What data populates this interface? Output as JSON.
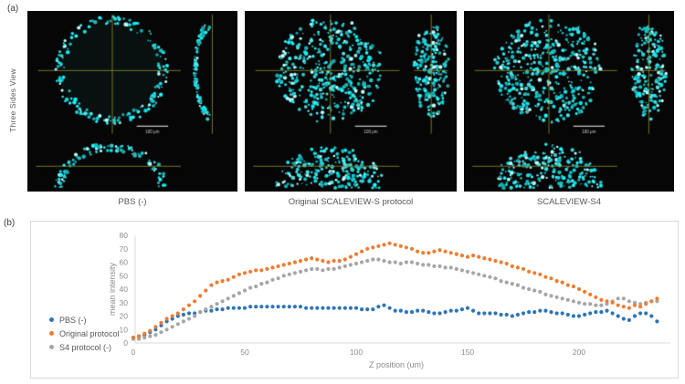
{
  "figure": {
    "panel_a_label": "(a)",
    "panel_b_label": "(b)",
    "side_axis_label": "Three Sides View"
  },
  "panel_a": {
    "colors": {
      "signal": "#2fd9d9",
      "bright": "#bdfdfd",
      "crosshair": "#8a8a2e",
      "background": "#060606",
      "scale_bar": "#cfcfcf"
    },
    "images": [
      {
        "caption": "PBS (-)",
        "pattern": "edge-only",
        "scale_bar_label": "100 μm"
      },
      {
        "caption": "Original SCALEVIEW-S protocol",
        "pattern": "filled",
        "scale_bar_label": "100 μm"
      },
      {
        "caption": "SCALEVIEW-S4",
        "pattern": "filled",
        "scale_bar_label": "100 μm"
      }
    ]
  },
  "chart_data": {
    "type": "scatter",
    "title": "",
    "xlabel": "Z position (um)",
    "ylabel": "mean intensity",
    "xlim": [
      0,
      240
    ],
    "ylim": [
      0,
      80
    ],
    "x_ticks": [
      0,
      50,
      100,
      150,
      200
    ],
    "y_ticks": [
      0,
      10,
      20,
      30,
      40,
      50,
      60,
      70,
      80
    ],
    "grid": false,
    "legend_position": "left",
    "x_start": 0,
    "x_step": 2.5,
    "series": [
      {
        "name": "PBS (-)",
        "color": "#2e75b6",
        "values": [
          4,
          5,
          6,
          8,
          10,
          13,
          16,
          18,
          20,
          21,
          22,
          22,
          23,
          24,
          24,
          25,
          25,
          26,
          26,
          26,
          26,
          27,
          27,
          27,
          27,
          27,
          27,
          27,
          27,
          27,
          27,
          26,
          26,
          26,
          26,
          26,
          26,
          26,
          26,
          26,
          26,
          25,
          25,
          25,
          27,
          28,
          26,
          24,
          24,
          23,
          23,
          24,
          24,
          23,
          22,
          22,
          23,
          24,
          24,
          25,
          26,
          24,
          22,
          22,
          22,
          22,
          21,
          21,
          20,
          21,
          22,
          23,
          23,
          24,
          24,
          23,
          22,
          22,
          21,
          20,
          20,
          21,
          22,
          23,
          23,
          24,
          22,
          20,
          18,
          17,
          20,
          22,
          22,
          20,
          16
        ]
      },
      {
        "name": "Original protocol",
        "color": "#ed7d31",
        "values": [
          4,
          5,
          7,
          9,
          12,
          15,
          18,
          20,
          22,
          25,
          28,
          31,
          35,
          39,
          43,
          45,
          46,
          47,
          49,
          51,
          52,
          53,
          54,
          54,
          55,
          56,
          57,
          58,
          59,
          60,
          61,
          62,
          63,
          62,
          61,
          60,
          61,
          61,
          62,
          64,
          66,
          68,
          70,
          71,
          72,
          73,
          74,
          73,
          72,
          71,
          70,
          68,
          67,
          67,
          68,
          69,
          68,
          67,
          66,
          65,
          64,
          65,
          64,
          63,
          62,
          61,
          60,
          59,
          57,
          56,
          55,
          53,
          52,
          51,
          49,
          48,
          46,
          45,
          43,
          42,
          40,
          38,
          36,
          34,
          32,
          31,
          30,
          28,
          27,
          26,
          28,
          27,
          29,
          31,
          33
        ]
      },
      {
        "name": "S4 protocol (-)",
        "color": "#a6a6a6",
        "values": [
          3,
          3,
          4,
          5,
          6,
          8,
          10,
          12,
          14,
          16,
          18,
          20,
          23,
          25,
          27,
          29,
          31,
          33,
          35,
          37,
          39,
          41,
          42,
          44,
          45,
          47,
          48,
          50,
          51,
          52,
          53,
          54,
          55,
          55,
          54,
          55,
          55,
          56,
          57,
          58,
          59,
          60,
          61,
          62,
          62,
          61,
          60,
          60,
          59,
          60,
          60,
          59,
          58,
          58,
          57,
          57,
          56,
          56,
          55,
          54,
          53,
          52,
          51,
          50,
          49,
          48,
          46,
          45,
          44,
          43,
          41,
          40,
          39,
          38,
          36,
          35,
          34,
          33,
          32,
          31,
          30,
          29,
          29,
          28,
          28,
          29,
          31,
          33,
          33,
          31,
          30,
          29,
          30,
          31,
          31
        ]
      }
    ]
  }
}
